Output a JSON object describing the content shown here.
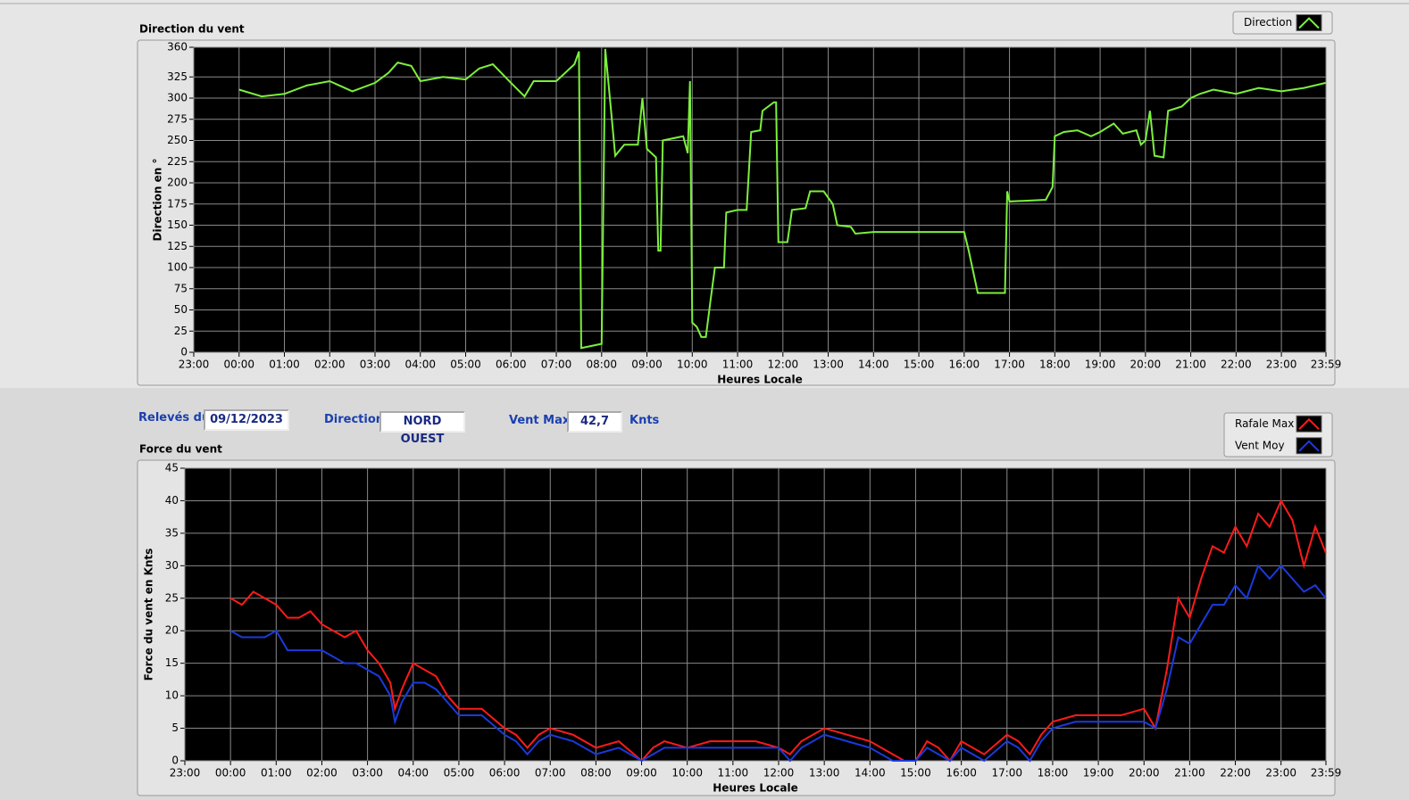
{
  "chart_data": [
    {
      "type": "line",
      "title": "Direction du vent",
      "x_label": "Heures Locale",
      "y_label": "Direction en °",
      "xlim": [
        -1,
        23.9833
      ],
      "ylim": [
        0,
        360
      ],
      "grid": true,
      "xticks": [
        {
          "value": -1,
          "label": "23:00"
        },
        {
          "value": 0,
          "label": "00:00"
        },
        {
          "value": 1,
          "label": "01:00"
        },
        {
          "value": 2,
          "label": "02:00"
        },
        {
          "value": 3,
          "label": "03:00"
        },
        {
          "value": 4,
          "label": "04:00"
        },
        {
          "value": 5,
          "label": "05:00"
        },
        {
          "value": 6,
          "label": "06:00"
        },
        {
          "value": 7,
          "label": "07:00"
        },
        {
          "value": 8,
          "label": "08:00"
        },
        {
          "value": 9,
          "label": "09:00"
        },
        {
          "value": 10,
          "label": "10:00"
        },
        {
          "value": 11,
          "label": "11:00"
        },
        {
          "value": 12,
          "label": "12:00"
        },
        {
          "value": 13,
          "label": "13:00"
        },
        {
          "value": 14,
          "label": "14:00"
        },
        {
          "value": 15,
          "label": "15:00"
        },
        {
          "value": 16,
          "label": "16:00"
        },
        {
          "value": 17,
          "label": "17:00"
        },
        {
          "value": 18,
          "label": "18:00"
        },
        {
          "value": 19,
          "label": "19:00"
        },
        {
          "value": 20,
          "label": "20:00"
        },
        {
          "value": 21,
          "label": "21:00"
        },
        {
          "value": 22,
          "label": "22:00"
        },
        {
          "value": 23,
          "label": "23:00"
        },
        {
          "value": 23.9833,
          "label": "23:59"
        }
      ],
      "yticks": [
        0,
        25,
        50,
        75,
        100,
        125,
        150,
        175,
        200,
        225,
        250,
        275,
        300,
        325,
        360
      ],
      "legend": "top-right",
      "x": [
        0,
        0.5,
        1.0,
        1.5,
        2.0,
        2.5,
        3.0,
        3.3,
        3.5,
        3.8,
        4.0,
        4.5,
        5.0,
        5.3,
        5.6,
        6.0,
        6.3,
        6.5,
        7.0,
        7.4,
        7.5,
        7.55,
        8.0,
        8.08,
        8.2,
        8.3,
        8.5,
        8.8,
        8.9,
        9.0,
        9.2,
        9.25,
        9.3,
        9.35,
        9.8,
        9.9,
        9.95,
        10.0,
        10.1,
        10.2,
        10.3,
        10.4,
        10.5,
        10.7,
        10.75,
        11.0,
        11.2,
        11.3,
        11.5,
        11.55,
        11.8,
        11.85,
        11.9,
        12.1,
        12.2,
        12.5,
        12.6,
        12.9,
        13.1,
        13.2,
        13.5,
        13.6,
        14.0,
        16.0,
        16.1,
        16.3,
        16.9,
        16.95,
        17.0,
        17.8,
        17.95,
        18.0,
        18.2,
        18.5,
        18.8,
        19.0,
        19.3,
        19.5,
        19.8,
        19.9,
        20.0,
        20.1,
        20.2,
        20.4,
        20.5,
        20.8,
        21.0,
        21.2,
        21.5,
        22.0,
        22.5,
        23.0,
        23.5,
        23.98
      ],
      "series": [
        {
          "name": "Direction",
          "color": "#7cf03c",
          "values": [
            310,
            302,
            305,
            315,
            320,
            308,
            318,
            330,
            342,
            338,
            320,
            325,
            322,
            335,
            340,
            318,
            302,
            320,
            320,
            340,
            355,
            5,
            10,
            358,
            290,
            232,
            245,
            245,
            300,
            240,
            230,
            120,
            120,
            250,
            255,
            235,
            320,
            35,
            30,
            18,
            18,
            60,
            100,
            100,
            165,
            168,
            168,
            260,
            262,
            285,
            295,
            295,
            130,
            130,
            168,
            170,
            190,
            190,
            175,
            150,
            148,
            140,
            142,
            142,
            120,
            70,
            70,
            190,
            178,
            180,
            195,
            255,
            260,
            262,
            255,
            260,
            270,
            258,
            262,
            245,
            250,
            285,
            232,
            230,
            285,
            290,
            300,
            305,
            310,
            305,
            312,
            308,
            312,
            318
          ]
        }
      ]
    },
    {
      "type": "line",
      "title": "Force du vent",
      "x_label": "Heures Locale",
      "y_label": "Force du vent en Knts",
      "xlim": [
        -1,
        23.9833
      ],
      "ylim": [
        0,
        45
      ],
      "grid": true,
      "xticks": [
        {
          "value": -1,
          "label": "23:00"
        },
        {
          "value": 0,
          "label": "00:00"
        },
        {
          "value": 1,
          "label": "01:00"
        },
        {
          "value": 2,
          "label": "02:00"
        },
        {
          "value": 3,
          "label": "03:00"
        },
        {
          "value": 4,
          "label": "04:00"
        },
        {
          "value": 5,
          "label": "05:00"
        },
        {
          "value": 6,
          "label": "06:00"
        },
        {
          "value": 7,
          "label": "07:00"
        },
        {
          "value": 8,
          "label": "08:00"
        },
        {
          "value": 9,
          "label": "09:00"
        },
        {
          "value": 10,
          "label": "10:00"
        },
        {
          "value": 11,
          "label": "11:00"
        },
        {
          "value": 12,
          "label": "12:00"
        },
        {
          "value": 13,
          "label": "13:00"
        },
        {
          "value": 14,
          "label": "14:00"
        },
        {
          "value": 15,
          "label": "15:00"
        },
        {
          "value": 16,
          "label": "16:00"
        },
        {
          "value": 17,
          "label": "17:00"
        },
        {
          "value": 18,
          "label": "18:00"
        },
        {
          "value": 19,
          "label": "19:00"
        },
        {
          "value": 20,
          "label": "20:00"
        },
        {
          "value": 21,
          "label": "21:00"
        },
        {
          "value": 22,
          "label": "22:00"
        },
        {
          "value": 23,
          "label": "23:00"
        },
        {
          "value": 23.9833,
          "label": "23:59"
        }
      ],
      "yticks": [
        0,
        5,
        10,
        15,
        20,
        25,
        30,
        35,
        40,
        45
      ],
      "legend": "top-right",
      "x": [
        0,
        0.25,
        0.5,
        0.75,
        1.0,
        1.25,
        1.5,
        1.75,
        2.0,
        2.25,
        2.5,
        2.75,
        3.0,
        3.25,
        3.5,
        3.6,
        3.75,
        4.0,
        4.25,
        4.5,
        4.75,
        5.0,
        5.5,
        6.0,
        6.25,
        6.5,
        6.75,
        7.0,
        7.5,
        8.0,
        8.5,
        9.0,
        9.25,
        9.5,
        10.0,
        10.5,
        11.0,
        11.5,
        12.0,
        12.25,
        12.5,
        13.0,
        13.5,
        14.0,
        14.5,
        14.75,
        15.0,
        15.25,
        15.5,
        15.75,
        16.0,
        16.5,
        17.0,
        17.25,
        17.5,
        17.75,
        18.0,
        18.5,
        19.0,
        19.5,
        20.0,
        20.25,
        20.5,
        20.75,
        21.0,
        21.25,
        21.5,
        21.75,
        22.0,
        22.25,
        22.5,
        22.75,
        23.0,
        23.25,
        23.5,
        23.75,
        23.98
      ],
      "series": [
        {
          "name": "Rafale Max",
          "color": "#ff1a1a",
          "values": [
            25,
            24,
            26,
            25,
            24,
            22,
            22,
            23,
            21,
            20,
            19,
            20,
            17,
            15,
            12,
            8,
            11,
            15,
            14,
            13,
            10,
            8,
            8,
            5,
            4,
            2,
            4,
            5,
            4,
            2,
            3,
            0,
            2,
            3,
            2,
            3,
            3,
            3,
            2,
            1,
            3,
            5,
            4,
            3,
            1,
            0,
            0,
            3,
            2,
            0,
            3,
            1,
            4,
            3,
            1,
            4,
            6,
            7,
            7,
            7,
            8,
            5,
            14,
            25,
            22,
            28,
            33,
            32,
            36,
            33,
            38,
            36,
            40,
            37,
            30,
            36,
            32
          ]
        },
        {
          "name": "Vent Moy",
          "color": "#1a3adc",
          "values": [
            20,
            19,
            19,
            19,
            20,
            17,
            17,
            17,
            17,
            16,
            15,
            15,
            14,
            13,
            10,
            6,
            9,
            12,
            12,
            11,
            9,
            7,
            7,
            4,
            3,
            1,
            3,
            4,
            3,
            1,
            2,
            0,
            1,
            2,
            2,
            2,
            2,
            2,
            2,
            0,
            2,
            4,
            3,
            2,
            0,
            0,
            0,
            2,
            1,
            0,
            2,
            0,
            3,
            2,
            0,
            3,
            5,
            6,
            6,
            6,
            6,
            5,
            11,
            19,
            18,
            21,
            24,
            24,
            27,
            25,
            30,
            28,
            30,
            28,
            26,
            27,
            25
          ]
        }
      ]
    }
  ],
  "panel": {
    "date_label": "Relevés du",
    "date": "09/12/2023",
    "direction_label": "Direction",
    "direction": "NORD OUEST",
    "vent_max_label": "Vent Max",
    "vent_max": "42,7",
    "vent_max_unit": "Knts"
  }
}
